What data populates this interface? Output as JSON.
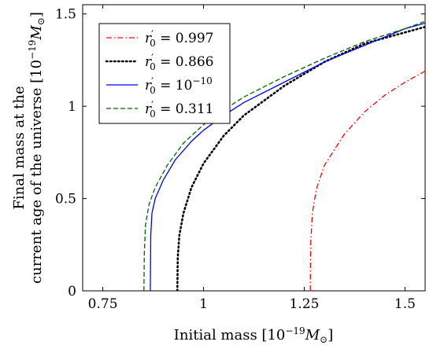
{
  "chart_data": {
    "type": "line",
    "xlabel": "Initial mass [10",
    "xlabel_exp": "−19",
    "xlabel_unit": "M",
    "ylabel_line1": "Final mass at the",
    "ylabel_line2": "current age of the universe [10",
    "ylabel_exp": "−19",
    "ylabel_unit": "M",
    "xlim": [
      0.7,
      1.55
    ],
    "ylim": [
      0,
      1.55
    ],
    "xticks": [
      0.75,
      1,
      1.25,
      1.5
    ],
    "xtick_labels": [
      "0.75",
      "1",
      "1.25",
      "1.5"
    ],
    "yticks": [
      0,
      0.5,
      1,
      1.5
    ],
    "ytick_labels": [
      "0",
      "0.5",
      "1",
      "1.5"
    ],
    "legend_position": "top-left",
    "series": [
      {
        "name": "r′₀ = 0.997",
        "legend_base": "r",
        "legend_sup": "′",
        "legend_sub": "0",
        "legend_value": " = 0.997",
        "legend_exp": "",
        "color": "#ff0000",
        "style": "dashdot",
        "x": [
          1.265,
          1.266,
          1.27,
          1.28,
          1.3,
          1.35,
          1.4,
          1.45,
          1.5,
          1.55
        ],
        "y": [
          0,
          0.25,
          0.42,
          0.55,
          0.68,
          0.85,
          0.97,
          1.06,
          1.13,
          1.19
        ]
      },
      {
        "name": "r′₀ = 0.866",
        "legend_base": "r",
        "legend_sup": "′",
        "legend_sub": "0",
        "legend_value": " = 0.866",
        "legend_exp": "",
        "color": "#000000",
        "style": "dotted",
        "x": [
          0.935,
          0.936,
          0.94,
          0.95,
          0.97,
          1.0,
          1.05,
          1.1,
          1.2,
          1.3,
          1.4,
          1.5,
          1.55
        ],
        "y": [
          0,
          0.18,
          0.3,
          0.42,
          0.56,
          0.69,
          0.84,
          0.95,
          1.11,
          1.24,
          1.34,
          1.4,
          1.43
        ]
      },
      {
        "name": "r′₀ = 10⁻¹⁰",
        "legend_base": "r",
        "legend_sup": "′",
        "legend_sub": "0",
        "legend_value": " = 10",
        "legend_exp": "−10",
        "color": "#0000ff",
        "style": "solid",
        "x": [
          0.868,
          0.869,
          0.872,
          0.88,
          0.9,
          0.93,
          0.97,
          1.0,
          1.05,
          1.1,
          1.2,
          1.3,
          1.4,
          1.5,
          1.55
        ],
        "y": [
          0,
          0.3,
          0.42,
          0.5,
          0.6,
          0.71,
          0.81,
          0.87,
          0.95,
          1.02,
          1.13,
          1.24,
          1.33,
          1.42,
          1.45
        ]
      },
      {
        "name": "r′₀ = 0.311",
        "legend_base": "r",
        "legend_sup": "′",
        "legend_sub": "0",
        "legend_value": " = 0.311",
        "legend_exp": "",
        "color": "#006400",
        "style": "dashed",
        "x": [
          0.852,
          0.853,
          0.856,
          0.865,
          0.88,
          0.91,
          0.95,
          1.0,
          1.05,
          1.1,
          1.2,
          1.3,
          1.4,
          1.5,
          1.55
        ],
        "y": [
          0,
          0.2,
          0.36,
          0.47,
          0.56,
          0.68,
          0.8,
          0.9,
          0.98,
          1.05,
          1.16,
          1.26,
          1.35,
          1.42,
          1.46
        ]
      }
    ]
  }
}
